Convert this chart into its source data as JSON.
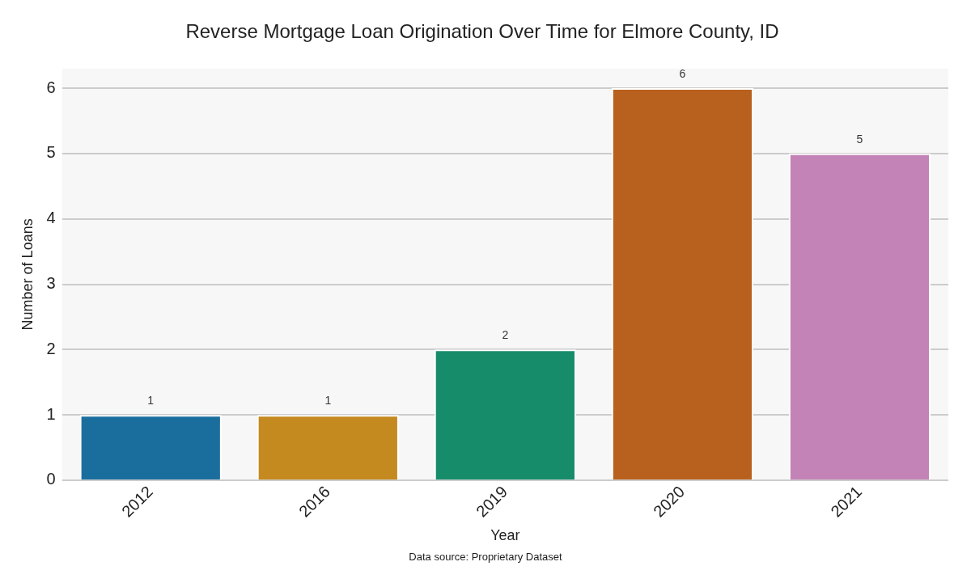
{
  "chart_data": {
    "type": "bar",
    "title": "Reverse Mortgage Loan Origination Over Time for Elmore County, ID",
    "xlabel": "Year",
    "ylabel": "Number of Loans",
    "categories": [
      "2012",
      "2016",
      "2019",
      "2020",
      "2021"
    ],
    "values": [
      1,
      1,
      2,
      6,
      5
    ],
    "colors": [
      "#1a6e9e",
      "#c4891f",
      "#178c6b",
      "#b8611e",
      "#c383b6"
    ],
    "ylim": [
      0,
      6.3
    ],
    "yticks": [
      0,
      1,
      2,
      3,
      4,
      5,
      6
    ],
    "grid": "y",
    "data_labels": true,
    "legend": false,
    "annotations": [
      "Data source: Proprietary Dataset"
    ]
  }
}
